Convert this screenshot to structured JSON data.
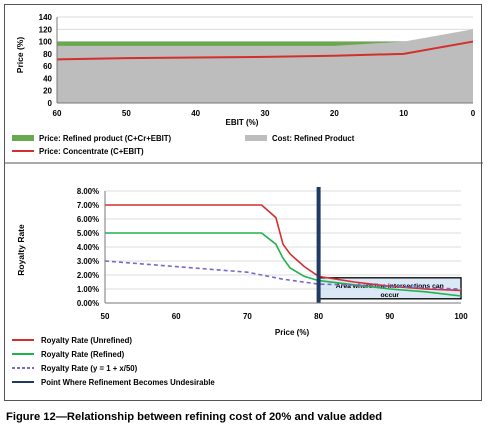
{
  "caption": "Figure 12—Relationship between refining cost of 20% and value added",
  "chart_data": [
    {
      "type": "area",
      "xlabel": "EBIT (%)",
      "ylabel": "Price (%)",
      "x_reversed": true,
      "xlim": [
        60,
        0
      ],
      "ylim": [
        0,
        140
      ],
      "x_ticks": [
        60,
        50,
        40,
        30,
        20,
        10,
        0
      ],
      "y_ticks": [
        0,
        20,
        40,
        60,
        80,
        100,
        120,
        140
      ],
      "grid": "horizontal",
      "legend_position": "bottom",
      "series": [
        {
          "name": "Price: Refined product (C+Cr+EBIT)",
          "kind": "area",
          "color": "#6aa84f",
          "x": [
            60,
            50,
            40,
            30,
            20,
            10,
            0
          ],
          "y": [
            100,
            100,
            100,
            100,
            100,
            100,
            100
          ]
        },
        {
          "name": "Cost: Refined Product",
          "kind": "area",
          "color": "#bdbdbd",
          "x": [
            60,
            50,
            40,
            30,
            20,
            10,
            0
          ],
          "y": [
            93,
            93,
            93,
            93,
            93,
            100,
            120
          ]
        },
        {
          "name": "Price: Concentrate (C+EBIT)",
          "kind": "line",
          "color": "#d32f2f",
          "x": [
            60,
            50,
            40,
            30,
            20,
            10,
            0
          ],
          "y": [
            71,
            73,
            74,
            75,
            77,
            80,
            100
          ]
        }
      ]
    },
    {
      "type": "line",
      "xlabel": "Price (%)",
      "ylabel": "Royalty Rate",
      "xlim": [
        50,
        100
      ],
      "ylim": [
        0,
        8
      ],
      "x_ticks": [
        50,
        60,
        70,
        80,
        90,
        100
      ],
      "y_ticks": [
        "0.00%",
        "1.00%",
        "2.00%",
        "3.00%",
        "4.00%",
        "5.00%",
        "6.00%",
        "7.00%",
        "8.00%"
      ],
      "grid": "horizontal",
      "legend_position": "bottom",
      "annotation": {
        "text_line1": "Area where line intersections can",
        "text_line2": "occur",
        "x_range": [
          80,
          100
        ],
        "y_range": [
          0.3,
          1.8
        ]
      },
      "series": [
        {
          "name": "Royalty Rate (Unrefined)",
          "color": "#d32f2f",
          "dash": "solid",
          "x": [
            50,
            55,
            60,
            65,
            70,
            72,
            74,
            75,
            76,
            78,
            80,
            85,
            90,
            95,
            100
          ],
          "y": [
            7,
            7,
            7,
            7,
            7,
            7,
            6.1,
            4.2,
            3.5,
            2.6,
            1.9,
            1.5,
            1.2,
            1.0,
            0.9
          ]
        },
        {
          "name": "Royalty Rate (Refined)",
          "color": "#21b24b",
          "dash": "solid",
          "x": [
            50,
            55,
            60,
            65,
            70,
            72,
            74,
            75,
            76,
            78,
            80,
            85,
            90,
            95,
            100
          ],
          "y": [
            5,
            5,
            5,
            5,
            5,
            5,
            4.2,
            3.2,
            2.5,
            1.9,
            1.6,
            1.3,
            1.0,
            0.8,
            0.5
          ]
        },
        {
          "name": "Royalty Rate (y = 1 + x/50)",
          "color": "#7b68c8",
          "dash": "dashed",
          "x": [
            50,
            55,
            60,
            65,
            70,
            75,
            80,
            85,
            90,
            95,
            100
          ],
          "y": [
            3.0,
            2.8,
            2.6,
            2.4,
            2.2,
            1.7,
            1.35,
            1.28,
            1.18,
            1.08,
            1.0
          ]
        },
        {
          "name": "Point Where Refinement Becomes Undesirable",
          "color": "#1f3a63",
          "dash": "solid",
          "kind": "vline",
          "x": [
            80,
            80
          ],
          "y": [
            0,
            8
          ]
        }
      ]
    }
  ]
}
